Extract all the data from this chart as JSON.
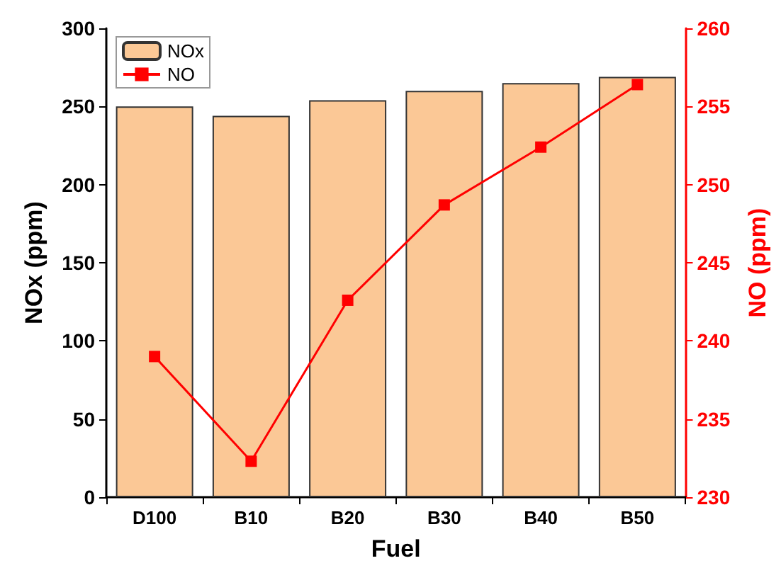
{
  "chart_data": {
    "type": "bar",
    "xlabel": "Fuel",
    "ylabel": "NOx (ppm)",
    "y2label": "NO (ppm)",
    "categories": [
      "D100",
      "B10",
      "B20",
      "B30",
      "B40",
      "B50"
    ],
    "series": [
      {
        "name": "NOx",
        "color": "#fbc896",
        "values": [
          250,
          244,
          254,
          260,
          265,
          269
        ]
      },
      {
        "name": "NO",
        "type": "line",
        "axis": "y2",
        "color": "#ff0000",
        "marker": "square",
        "values": [
          239.0,
          232.3,
          242.6,
          248.7,
          252.4,
          256.4
        ]
      }
    ],
    "ylim": [
      0,
      300
    ],
    "yticks": [
      0,
      50,
      100,
      150,
      200,
      250,
      300
    ],
    "y2lim": [
      230,
      260
    ],
    "y2ticks": [
      230,
      235,
      240,
      245,
      250,
      255,
      260
    ],
    "legend": "top left",
    "grid": false
  }
}
